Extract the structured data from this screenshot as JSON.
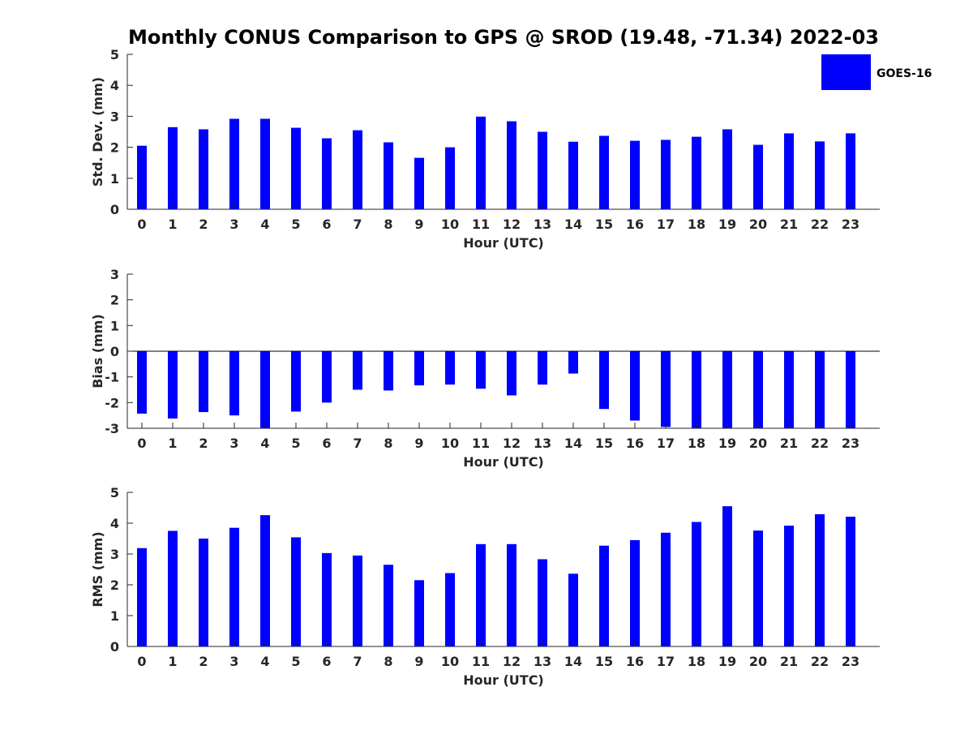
{
  "title": "Monthly CONUS Comparison to GPS @ SROD (19.48, -71.34) 2022-03",
  "legend": {
    "label": "GOES-16",
    "color": "#0000ff"
  },
  "chart_data": [
    {
      "type": "bar",
      "ylabel": "Std. Dev. (mm)",
      "xlabel": "Hour (UTC)",
      "ylim": [
        0,
        5
      ],
      "yticks": [
        "0",
        "1",
        "2",
        "3",
        "4",
        "5"
      ],
      "categories": [
        "0",
        "1",
        "2",
        "3",
        "4",
        "5",
        "6",
        "7",
        "8",
        "9",
        "10",
        "11",
        "12",
        "13",
        "14",
        "15",
        "16",
        "17",
        "18",
        "19",
        "20",
        "21",
        "22",
        "23"
      ],
      "series": [
        {
          "name": "GOES-16",
          "color": "#0000ff",
          "values": [
            2.05,
            2.65,
            2.58,
            2.92,
            2.92,
            2.63,
            2.29,
            2.55,
            2.16,
            1.66,
            2.0,
            2.99,
            2.84,
            2.5,
            2.18,
            2.37,
            2.21,
            2.24,
            2.34,
            2.58,
            2.08,
            2.45,
            2.19,
            2.45
          ]
        }
      ]
    },
    {
      "type": "bar",
      "ylabel": "Bias (mm)",
      "xlabel": "Hour (UTC)",
      "ylim": [
        -3,
        3
      ],
      "yticks": [
        "-3",
        "-2",
        "-1",
        "0",
        "1",
        "2",
        "3"
      ],
      "zero_line": true,
      "categories": [
        "0",
        "1",
        "2",
        "3",
        "4",
        "5",
        "6",
        "7",
        "8",
        "9",
        "10",
        "11",
        "12",
        "13",
        "14",
        "15",
        "16",
        "17",
        "18",
        "19",
        "20",
        "21",
        "22",
        "23"
      ],
      "series": [
        {
          "name": "GOES-16",
          "color": "#0000ff",
          "values": [
            -2.43,
            -2.62,
            -2.37,
            -2.5,
            -3.0,
            -2.35,
            -2.0,
            -1.5,
            -1.53,
            -1.33,
            -1.3,
            -1.46,
            -1.72,
            -1.3,
            -0.87,
            -2.25,
            -2.7,
            -2.95,
            -3.0,
            -3.0,
            -3.0,
            -3.0,
            -3.0,
            -3.0
          ]
        }
      ]
    },
    {
      "type": "bar",
      "ylabel": "RMS (mm)",
      "xlabel": "Hour (UTC)",
      "ylim": [
        0,
        5
      ],
      "yticks": [
        "0",
        "1",
        "2",
        "3",
        "4",
        "5"
      ],
      "categories": [
        "0",
        "1",
        "2",
        "3",
        "4",
        "5",
        "6",
        "7",
        "8",
        "9",
        "10",
        "11",
        "12",
        "13",
        "14",
        "15",
        "16",
        "17",
        "18",
        "19",
        "20",
        "21",
        "22",
        "23"
      ],
      "series": [
        {
          "name": "GOES-16",
          "color": "#0000ff",
          "values": [
            3.19,
            3.75,
            3.5,
            3.85,
            4.26,
            3.54,
            3.03,
            2.95,
            2.65,
            2.15,
            2.38,
            3.32,
            3.32,
            2.83,
            2.36,
            3.27,
            3.45,
            3.69,
            4.04,
            4.55,
            3.76,
            3.92,
            4.29,
            4.21
          ]
        }
      ]
    }
  ]
}
